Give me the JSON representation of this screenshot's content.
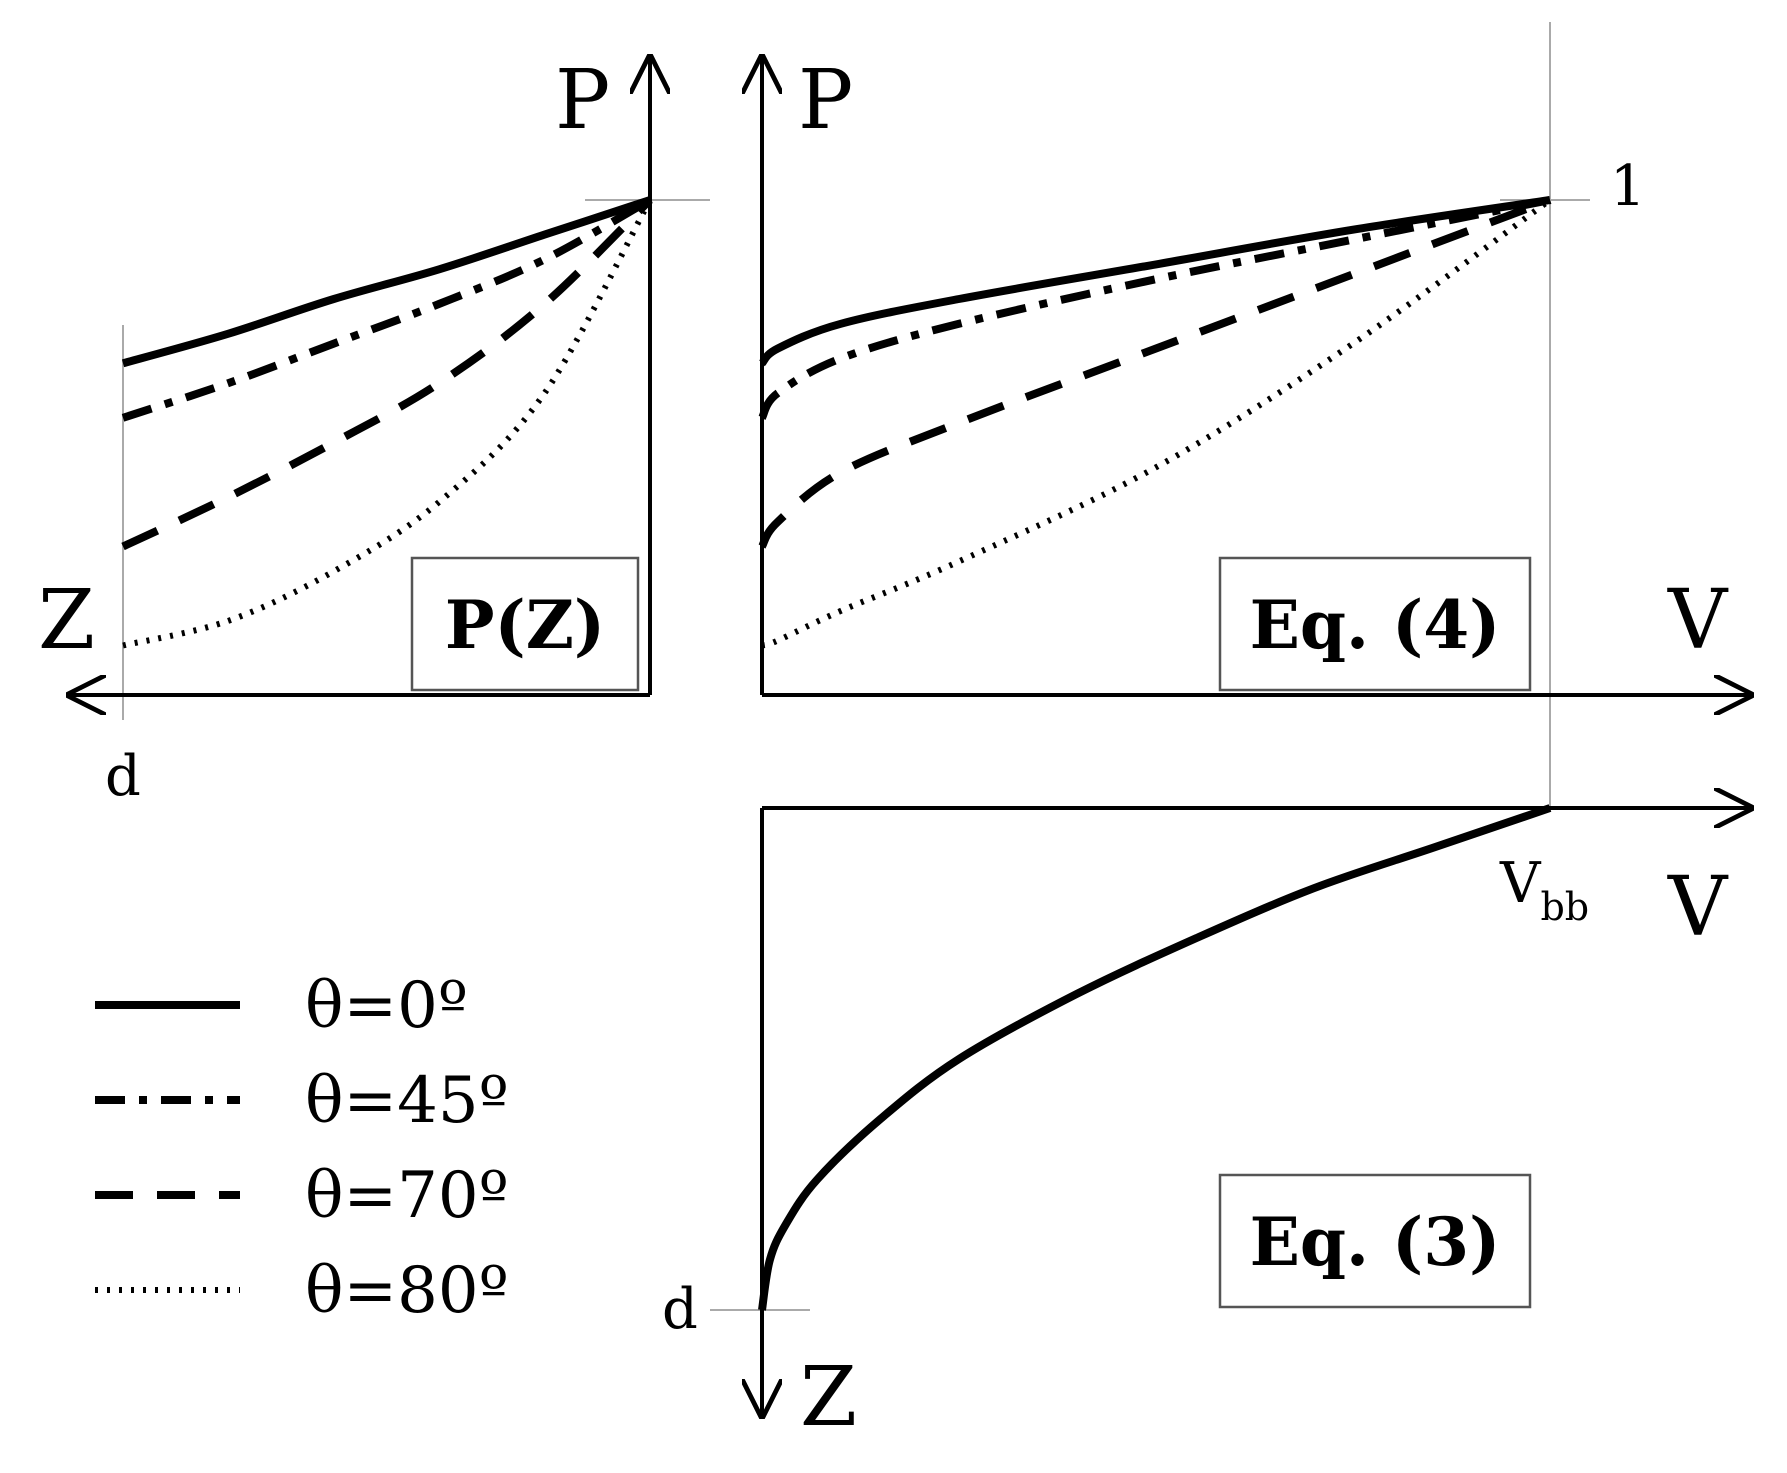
{
  "colors": {
    "ink": "#000000",
    "guide": "#aaaaaa",
    "box_border": "#555555"
  },
  "chart_data": [
    {
      "id": "pz",
      "type": "line",
      "box_label": "P(Z)",
      "xlabel": "Z",
      "ylabel": "P",
      "x_tick_label": "d",
      "x_direction": "reversed",
      "xlim": [
        0,
        1
      ],
      "ylim": [
        0,
        1
      ],
      "series": [
        {
          "name": "θ=0º",
          "style": "solid",
          "x": [
            1,
            0.8,
            0.6,
            0.4,
            0.2,
            0
          ],
          "y": [
            0.67,
            0.73,
            0.8,
            0.86,
            0.93,
            1.0
          ]
        },
        {
          "name": "θ=45º",
          "style": "dash-dot",
          "x": [
            1,
            0.8,
            0.6,
            0.4,
            0.2,
            0
          ],
          "y": [
            0.56,
            0.63,
            0.71,
            0.79,
            0.88,
            1.0
          ]
        },
        {
          "name": "θ=70º",
          "style": "dashed",
          "x": [
            1,
            0.8,
            0.6,
            0.4,
            0.2,
            0
          ],
          "y": [
            0.3,
            0.4,
            0.51,
            0.63,
            0.79,
            1.0
          ]
        },
        {
          "name": "θ=80º",
          "style": "dotted",
          "x": [
            1,
            0.8,
            0.6,
            0.4,
            0.2,
            0
          ],
          "y": [
            0.1,
            0.15,
            0.25,
            0.39,
            0.61,
            1.0
          ]
        }
      ]
    },
    {
      "id": "eq4",
      "type": "line",
      "box_label": "Eq. (4)",
      "xlabel": "V",
      "ylabel": "P",
      "y_tick_label": "1",
      "xlim": [
        0,
        1.27
      ],
      "ylim": [
        0,
        1
      ],
      "series": [
        {
          "name": "θ=0º",
          "style": "solid",
          "x": [
            0,
            0.02,
            0.1,
            0.25,
            0.5,
            0.75,
            1.0
          ],
          "y": [
            0.67,
            0.7,
            0.75,
            0.8,
            0.87,
            0.94,
            1.0
          ]
        },
        {
          "name": "θ=45º",
          "style": "dash-dot",
          "x": [
            0,
            0.02,
            0.1,
            0.25,
            0.5,
            0.75,
            1.0
          ],
          "y": [
            0.56,
            0.61,
            0.68,
            0.75,
            0.84,
            0.92,
            1.0
          ]
        },
        {
          "name": "θ=70º",
          "style": "dashed",
          "x": [
            0,
            0.02,
            0.1,
            0.25,
            0.5,
            0.75,
            1.0
          ],
          "y": [
            0.3,
            0.35,
            0.45,
            0.55,
            0.7,
            0.85,
            1.0
          ]
        },
        {
          "name": "θ=80º",
          "style": "dotted",
          "x": [
            0,
            0.02,
            0.1,
            0.25,
            0.5,
            0.75,
            1.0
          ],
          "y": [
            0.1,
            0.11,
            0.17,
            0.27,
            0.46,
            0.71,
            1.0
          ]
        }
      ]
    },
    {
      "id": "eq3",
      "type": "line",
      "box_label": "Eq. (3)",
      "xlabel": "V",
      "ylabel": "Z",
      "x_tick_label": "V",
      "x_tick_sub": "bb",
      "y_tick_label": "d",
      "y_direction": "down",
      "xlim": [
        0,
        1.27
      ],
      "ylim": [
        0,
        1.2
      ],
      "series": [
        {
          "name": "",
          "style": "solid",
          "x": [
            0,
            0.01,
            0.03,
            0.07,
            0.15,
            0.25,
            0.4,
            0.55,
            0.7,
            0.85,
            1.0
          ],
          "y": [
            1.0,
            0.9,
            0.83,
            0.74,
            0.62,
            0.5,
            0.37,
            0.26,
            0.16,
            0.08,
            0.0
          ]
        }
      ]
    }
  ],
  "legend": [
    {
      "label": "θ=0º",
      "style": "solid"
    },
    {
      "label": "θ=45º",
      "style": "dash-dot"
    },
    {
      "label": "θ=70º",
      "style": "dashed"
    },
    {
      "label": "θ=80º",
      "style": "dotted"
    }
  ]
}
